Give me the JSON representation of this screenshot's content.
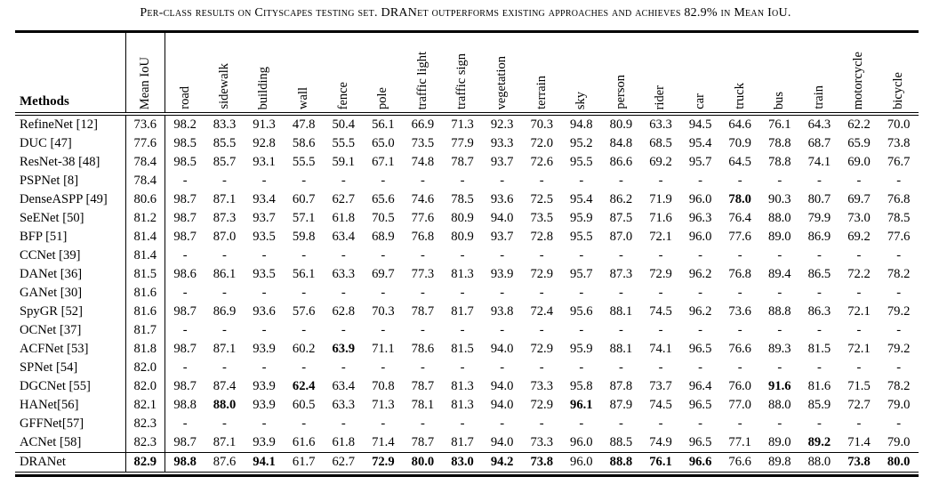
{
  "caption": "Per-class results on Cityscapes testing set. DRANet outperforms existing approaches and achieves 82.9% in Mean IoU.",
  "table": {
    "method_col_header": "Methods",
    "class_columns": [
      "Mean IoU",
      "road",
      "sidewalk",
      "building",
      "wall",
      "fence",
      "pole",
      "traffic light",
      "traffic sign",
      "vegetation",
      "terrain",
      "sky",
      "person",
      "rider",
      "car",
      "truck",
      "bus",
      "train",
      "motorcycle",
      "bicycle"
    ],
    "rows": [
      {
        "method": "RefineNet [12]",
        "values": [
          "73.6",
          "98.2",
          "83.3",
          "91.3",
          "47.8",
          "50.4",
          "56.1",
          "66.9",
          "71.3",
          "92.3",
          "70.3",
          "94.8",
          "80.9",
          "63.3",
          "94.5",
          "64.6",
          "76.1",
          "64.3",
          "62.2",
          "70.0"
        ],
        "bold": []
      },
      {
        "method": "DUC [47]",
        "values": [
          "77.6",
          "98.5",
          "85.5",
          "92.8",
          "58.6",
          "55.5",
          "65.0",
          "73.5",
          "77.9",
          "93.3",
          "72.0",
          "95.2",
          "84.8",
          "68.5",
          "95.4",
          "70.9",
          "78.8",
          "68.7",
          "65.9",
          "73.8"
        ],
        "bold": []
      },
      {
        "method": "ResNet-38 [48]",
        "values": [
          "78.4",
          "98.5",
          "85.7",
          "93.1",
          "55.5",
          "59.1",
          "67.1",
          "74.8",
          "78.7",
          "93.7",
          "72.6",
          "95.5",
          "86.6",
          "69.2",
          "95.7",
          "64.5",
          "78.8",
          "74.1",
          "69.0",
          "76.7"
        ],
        "bold": []
      },
      {
        "method": "PSPNet [8]",
        "values": [
          "78.4",
          "-",
          "-",
          "-",
          "-",
          "-",
          "-",
          "-",
          "-",
          "-",
          "-",
          "-",
          "-",
          "-",
          "-",
          "-",
          "-",
          "-",
          "-",
          "-"
        ],
        "bold": []
      },
      {
        "method": "DenseASPP [49]",
        "values": [
          "80.6",
          "98.7",
          "87.1",
          "93.4",
          "60.7",
          "62.7",
          "65.6",
          "74.6",
          "78.5",
          "93.6",
          "72.5",
          "95.4",
          "86.2",
          "71.9",
          "96.0",
          "78.0",
          "90.3",
          "80.7",
          "69.7",
          "76.8"
        ],
        "bold": [
          15
        ]
      },
      {
        "method": "SeENet [50]",
        "values": [
          "81.2",
          "98.7",
          "87.3",
          "93.7",
          "57.1",
          "61.8",
          "70.5",
          "77.6",
          "80.9",
          "94.0",
          "73.5",
          "95.9",
          "87.5",
          "71.6",
          "96.3",
          "76.4",
          "88.0",
          "79.9",
          "73.0",
          "78.5"
        ],
        "bold": []
      },
      {
        "method": "BFP [51]",
        "values": [
          "81.4",
          "98.7",
          "87.0",
          "93.5",
          "59.8",
          "63.4",
          "68.9",
          "76.8",
          "80.9",
          "93.7",
          "72.8",
          "95.5",
          "87.0",
          "72.1",
          "96.0",
          "77.6",
          "89.0",
          "86.9",
          "69.2",
          "77.6"
        ],
        "bold": []
      },
      {
        "method": "CCNet [39]",
        "values": [
          "81.4",
          "-",
          "-",
          "-",
          "-",
          "-",
          "-",
          "-",
          "-",
          "-",
          "-",
          "-",
          "-",
          "-",
          "-",
          "-",
          "-",
          "-",
          "-",
          "-"
        ],
        "bold": []
      },
      {
        "method": "DANet [36]",
        "values": [
          "81.5",
          "98.6",
          "86.1",
          "93.5",
          "56.1",
          "63.3",
          "69.7",
          "77.3",
          "81.3",
          "93.9",
          "72.9",
          "95.7",
          "87.3",
          "72.9",
          "96.2",
          "76.8",
          "89.4",
          "86.5",
          "72.2",
          "78.2"
        ],
        "bold": []
      },
      {
        "method": "GANet [30]",
        "values": [
          "81.6",
          "-",
          "-",
          "-",
          "-",
          "-",
          "-",
          "-",
          "-",
          "-",
          "-",
          "-",
          "-",
          "-",
          "-",
          "-",
          "-",
          "-",
          "-",
          "-"
        ],
        "bold": []
      },
      {
        "method": "SpyGR [52]",
        "values": [
          "81.6",
          "98.7",
          "86.9",
          "93.6",
          "57.6",
          "62.8",
          "70.3",
          "78.7",
          "81.7",
          "93.8",
          "72.4",
          "95.6",
          "88.1",
          "74.5",
          "96.2",
          "73.6",
          "88.8",
          "86.3",
          "72.1",
          "79.2"
        ],
        "bold": []
      },
      {
        "method": "OCNet [37]",
        "values": [
          "81.7",
          "-",
          "-",
          "-",
          "-",
          "-",
          "-",
          "-",
          "-",
          "-",
          "-",
          "-",
          "-",
          "-",
          "-",
          "-",
          "-",
          "-",
          "-",
          "-"
        ],
        "bold": []
      },
      {
        "method": "ACFNet [53]",
        "values": [
          "81.8",
          "98.7",
          "87.1",
          "93.9",
          "60.2",
          "63.9",
          "71.1",
          "78.6",
          "81.5",
          "94.0",
          "72.9",
          "95.9",
          "88.1",
          "74.1",
          "96.5",
          "76.6",
          "89.3",
          "81.5",
          "72.1",
          "79.2"
        ],
        "bold": [
          5
        ]
      },
      {
        "method": "SPNet [54]",
        "values": [
          "82.0",
          "-",
          "-",
          "-",
          "-",
          "-",
          "-",
          "-",
          "-",
          "-",
          "-",
          "-",
          "-",
          "-",
          "-",
          "-",
          "-",
          "-",
          "-",
          "-"
        ],
        "bold": []
      },
      {
        "method": "DGCNet [55]",
        "values": [
          "82.0",
          "98.7",
          "87.4",
          "93.9",
          "62.4",
          "63.4",
          "70.8",
          "78.7",
          "81.3",
          "94.0",
          "73.3",
          "95.8",
          "87.8",
          "73.7",
          "96.4",
          "76.0",
          "91.6",
          "81.6",
          "71.5",
          "78.2"
        ],
        "bold": [
          4,
          16
        ]
      },
      {
        "method": "HANet[56]",
        "values": [
          "82.1",
          "98.8",
          "88.0",
          "93.9",
          "60.5",
          "63.3",
          "71.3",
          "78.1",
          "81.3",
          "94.0",
          "72.9",
          "96.1",
          "87.9",
          "74.5",
          "96.5",
          "77.0",
          "88.0",
          "85.9",
          "72.7",
          "79.0"
        ],
        "bold": [
          2,
          11
        ]
      },
      {
        "method": "GFFNet[57]",
        "values": [
          "82.3",
          "-",
          "-",
          "-",
          "-",
          "-",
          "-",
          "-",
          "-",
          "-",
          "-",
          "-",
          "-",
          "-",
          "-",
          "-",
          "-",
          "-",
          "-",
          "-"
        ],
        "bold": []
      },
      {
        "method": "ACNet [58]",
        "values": [
          "82.3",
          "98.7",
          "87.1",
          "93.9",
          "61.6",
          "61.8",
          "71.4",
          "78.7",
          "81.7",
          "94.0",
          "73.3",
          "96.0",
          "88.5",
          "74.9",
          "96.5",
          "77.1",
          "89.0",
          "89.2",
          "71.4",
          "79.0"
        ],
        "bold": [
          17
        ]
      },
      {
        "method": "DRANet",
        "values": [
          "82.9",
          "98.8",
          "87.6",
          "94.1",
          "61.7",
          "62.7",
          "72.9",
          "80.0",
          "83.0",
          "94.2",
          "73.8",
          "96.0",
          "88.8",
          "76.1",
          "96.6",
          "76.6",
          "89.8",
          "88.0",
          "73.8",
          "80.0"
        ],
        "bold": [
          0,
          1,
          3,
          6,
          7,
          8,
          9,
          10,
          12,
          13,
          14,
          18,
          19
        ],
        "top_rule": true
      }
    ]
  }
}
